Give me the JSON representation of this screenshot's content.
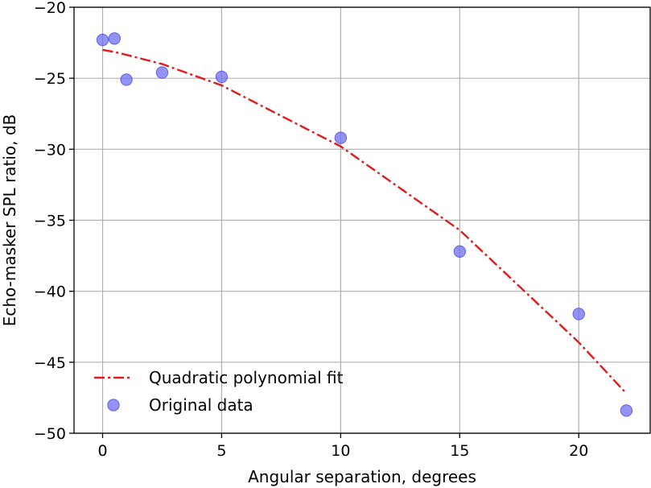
{
  "chart_data": {
    "type": "scatter",
    "title": "",
    "xlabel": "Angular separation, degrees",
    "ylabel": "Echo-masker SPL ratio, dB",
    "xlim": [
      -1.2,
      23.0
    ],
    "ylim": [
      -50,
      -20
    ],
    "xticks": [
      0,
      5,
      10,
      15,
      20
    ],
    "yticks": [
      -20,
      -25,
      -30,
      -35,
      -40,
      -45,
      -50
    ],
    "xtick_labels": [
      "0",
      "5",
      "10",
      "15",
      "20"
    ],
    "ytick_labels": [
      "−20",
      "−25",
      "−30",
      "−35",
      "−40",
      "−45",
      "−50"
    ],
    "grid": true,
    "legend_position": "bottom-left",
    "series": [
      {
        "name": "Quadratic polynomial fit",
        "kind": "line",
        "style": "dash-dot",
        "color": "#e31a1c",
        "x": [
          0,
          0.5,
          1,
          2.5,
          5,
          10,
          15,
          20,
          22
        ],
        "y": [
          -23.0,
          -23.15,
          -23.35,
          -24.0,
          -25.5,
          -29.8,
          -35.7,
          -43.6,
          -47.2
        ]
      },
      {
        "name": "Original data",
        "kind": "scatter",
        "color": "#6f6ff0",
        "x": [
          0,
          0.5,
          1,
          2.5,
          5,
          10,
          15,
          20,
          22
        ],
        "y": [
          -22.3,
          -22.2,
          -25.1,
          -24.6,
          -24.9,
          -29.2,
          -37.2,
          -41.6,
          -48.4
        ]
      }
    ]
  }
}
